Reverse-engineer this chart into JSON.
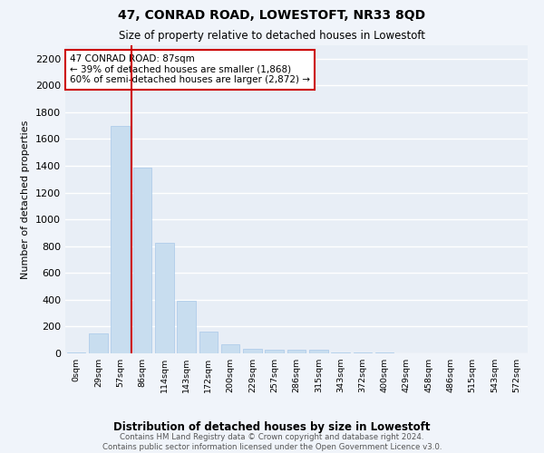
{
  "title": "47, CONRAD ROAD, LOWESTOFT, NR33 8QD",
  "subtitle": "Size of property relative to detached houses in Lowestoft",
  "xlabel": "Distribution of detached houses by size in Lowestoft",
  "ylabel": "Number of detached properties",
  "bar_color": "#c8ddef",
  "bar_edge_color": "#a8c8e8",
  "bg_color": "#e8eef6",
  "fig_bg": "#f0f4fa",
  "grid_color": "#ffffff",
  "categories": [
    "0sqm",
    "29sqm",
    "57sqm",
    "86sqm",
    "114sqm",
    "143sqm",
    "172sqm",
    "200sqm",
    "229sqm",
    "257sqm",
    "286sqm",
    "315sqm",
    "343sqm",
    "372sqm",
    "400sqm",
    "429sqm",
    "458sqm",
    "486sqm",
    "515sqm",
    "543sqm",
    "572sqm"
  ],
  "values": [
    10,
    150,
    1700,
    1390,
    825,
    390,
    160,
    65,
    35,
    25,
    25,
    30,
    10,
    8,
    5,
    3,
    2,
    2,
    1,
    1,
    1
  ],
  "ylim": [
    0,
    2300
  ],
  "yticks": [
    0,
    200,
    400,
    600,
    800,
    1000,
    1200,
    1400,
    1600,
    1800,
    2000,
    2200
  ],
  "property_bin_index": 2,
  "property_line_color": "#cc0000",
  "ann_line1": "47 CONRAD ROAD: 87sqm",
  "ann_line2": "← 39% of detached houses are smaller (1,868)",
  "ann_line3": "60% of semi-detached houses are larger (2,872) →",
  "ann_box_edge": "#cc0000",
  "footer_line1": "Contains HM Land Registry data © Crown copyright and database right 2024.",
  "footer_line2": "Contains public sector information licensed under the Open Government Licence v3.0."
}
